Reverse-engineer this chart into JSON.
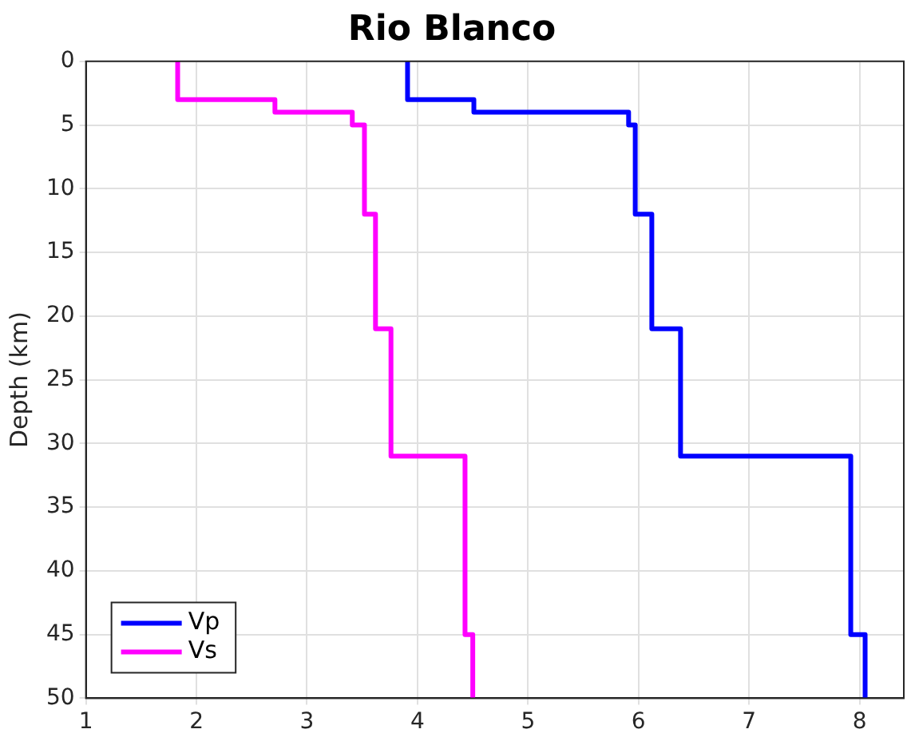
{
  "chart_data": {
    "type": "line",
    "title": "Rio Blanco",
    "ylabel": "Depth (km)",
    "xlim": [
      1,
      8.4
    ],
    "xticks": [
      1,
      2,
      3,
      4,
      5,
      6,
      7,
      8
    ],
    "ylim": [
      50,
      0
    ],
    "yticks": [
      0,
      5,
      10,
      15,
      20,
      25,
      30,
      35,
      40,
      45,
      50
    ],
    "grid": true,
    "legend": "bottom left",
    "marker": "none",
    "line_style": "solid",
    "series": [
      {
        "name": "Vp",
        "color": "#0000ff",
        "x": [
          3.91,
          3.91,
          4.51,
          4.51,
          5.91,
          5.91,
          5.97,
          5.97,
          6.12,
          6.12,
          6.38,
          6.38,
          7.92,
          7.92,
          8.05,
          8.05
        ],
        "values": [
          0,
          3,
          3,
          4,
          4,
          5,
          5,
          12,
          12,
          21,
          21,
          31,
          31,
          45,
          45,
          50
        ]
      },
      {
        "name": "Vs",
        "color": "#ff00ff",
        "x": [
          1.83,
          1.83,
          2.71,
          2.71,
          3.41,
          3.41,
          3.52,
          3.52,
          3.62,
          3.62,
          3.76,
          3.76,
          4.43,
          4.43,
          4.5,
          4.5
        ],
        "values": [
          0,
          3,
          3,
          4,
          4,
          5,
          5,
          12,
          12,
          21,
          21,
          31,
          31,
          45,
          45,
          50
        ]
      }
    ]
  }
}
